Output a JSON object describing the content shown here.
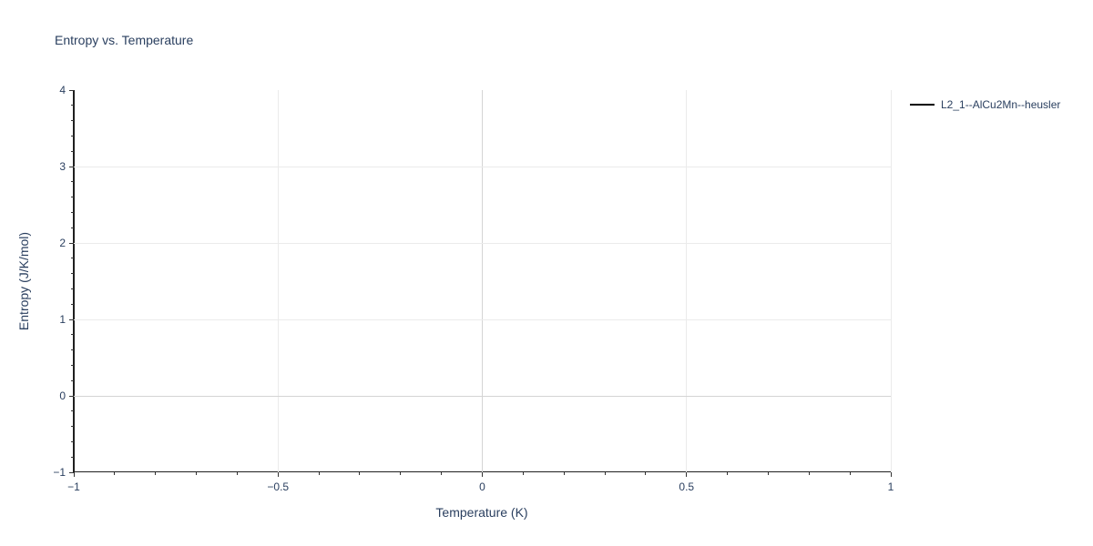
{
  "page": {
    "background": "#ffffff"
  },
  "chart_data": {
    "type": "line",
    "title": "Entropy vs. Temperature",
    "xlabel": "Temperature (K)",
    "ylabel": "Entropy (J/K/mol)",
    "xlim": [
      -1,
      1
    ],
    "ylim": [
      -1,
      4
    ],
    "x_major_ticks": [
      -1,
      -0.5,
      0,
      0.5,
      1
    ],
    "x_tick_labels": [
      "−1",
      "−0.5",
      "0",
      "0.5",
      "1"
    ],
    "x_minor_step": 0.1,
    "y_major_ticks": [
      -1,
      0,
      1,
      2,
      3,
      4
    ],
    "y_tick_labels": [
      "−1",
      "0",
      "1",
      "2",
      "3",
      "4"
    ],
    "y_minor_step": 0.2,
    "x_gridlines": [
      -0.5,
      0,
      0.5,
      1
    ],
    "y_gridlines": [
      0,
      1,
      2,
      3
    ],
    "zeroline_x": 0,
    "zeroline_y": 0,
    "grid": true,
    "legend_position": "right-top",
    "series": [
      {
        "name": "L2_1--AlCu2Mn--heusler",
        "color": "#000000",
        "x": [],
        "y": []
      }
    ],
    "colors": {
      "text": "#2a3f5f",
      "axis_line": "#1f1f1f",
      "tick": "#333333",
      "gridline": "#ebebeb",
      "zeroline": "#d4d4d4",
      "background": "#ffffff"
    }
  }
}
